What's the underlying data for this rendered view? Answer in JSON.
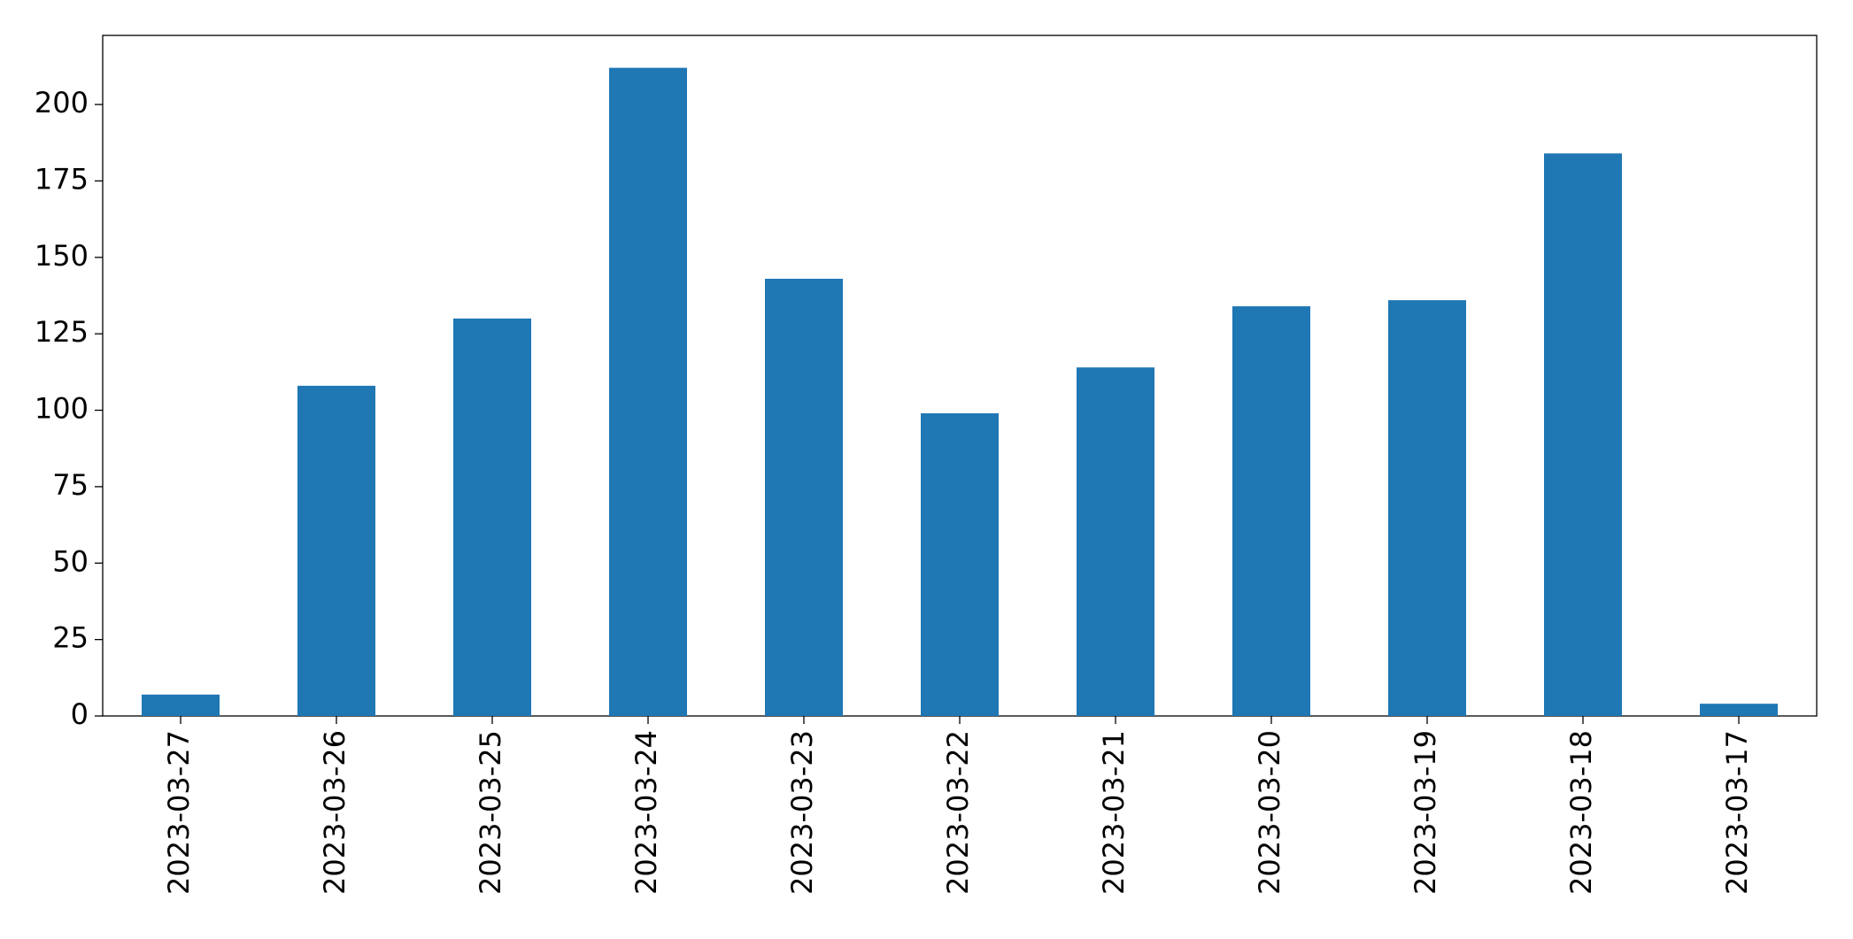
{
  "chart_data": {
    "type": "bar",
    "categories": [
      "2023-03-27",
      "2023-03-26",
      "2023-03-25",
      "2023-03-24",
      "2023-03-23",
      "2023-03-22",
      "2023-03-21",
      "2023-03-20",
      "2023-03-19",
      "2023-03-18",
      "2023-03-17"
    ],
    "values": [
      7,
      108,
      130,
      212,
      143,
      99,
      114,
      134,
      136,
      184,
      4
    ],
    "color": "#1f77b4",
    "ylim": [
      0,
      222.6
    ],
    "yticks": [
      0,
      25,
      50,
      75,
      100,
      125,
      150,
      175,
      200
    ],
    "grid": false
  }
}
